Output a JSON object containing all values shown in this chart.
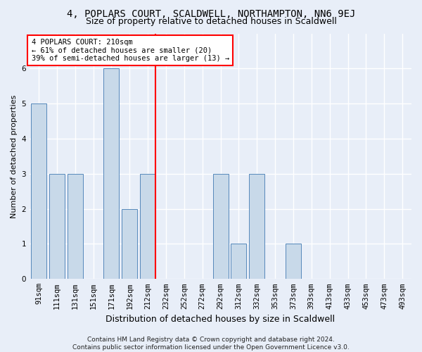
{
  "title": "4, POPLARS COURT, SCALDWELL, NORTHAMPTON, NN6 9EJ",
  "subtitle": "Size of property relative to detached houses in Scaldwell",
  "xlabel": "Distribution of detached houses by size in Scaldwell",
  "ylabel": "Number of detached properties",
  "categories": [
    "91sqm",
    "111sqm",
    "131sqm",
    "151sqm",
    "171sqm",
    "192sqm",
    "212sqm",
    "232sqm",
    "252sqm",
    "272sqm",
    "292sqm",
    "312sqm",
    "332sqm",
    "353sqm",
    "373sqm",
    "393sqm",
    "413sqm",
    "433sqm",
    "453sqm",
    "473sqm",
    "493sqm"
  ],
  "values": [
    5,
    3,
    3,
    0,
    6,
    2,
    3,
    0,
    0,
    0,
    3,
    1,
    3,
    0,
    1,
    0,
    0,
    0,
    0,
    0,
    0
  ],
  "bar_color": "#c8d9e9",
  "bar_edgecolor": "#5588bb",
  "red_line_index": 6,
  "annotation_text": "4 POPLARS COURT: 210sqm\n← 61% of detached houses are smaller (20)\n39% of semi-detached houses are larger (13) →",
  "annotation_box_color": "white",
  "annotation_box_edgecolor": "red",
  "ylim": [
    0,
    7
  ],
  "yticks": [
    0,
    1,
    2,
    3,
    4,
    5,
    6
  ],
  "background_color": "#e8eef8",
  "grid_color": "white",
  "footer": "Contains HM Land Registry data © Crown copyright and database right 2024.\nContains public sector information licensed under the Open Government Licence v3.0.",
  "title_fontsize": 10,
  "subtitle_fontsize": 9,
  "xlabel_fontsize": 9,
  "ylabel_fontsize": 8,
  "tick_fontsize": 7.5,
  "annotation_fontsize": 7.5,
  "footer_fontsize": 6.5
}
